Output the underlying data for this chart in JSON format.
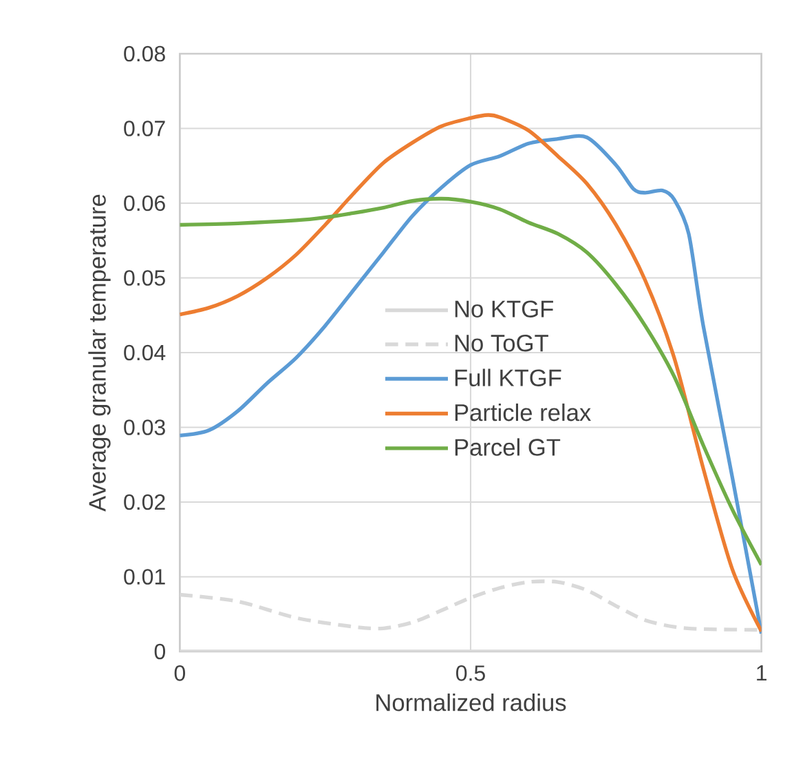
{
  "chart_data": {
    "type": "line",
    "xlabel": "Normalized radius",
    "ylabel": "Average granular temperature",
    "xlim": [
      0,
      1
    ],
    "ylim": [
      0,
      0.08
    ],
    "xticks": [
      0,
      0.5,
      1
    ],
    "yticks": [
      0,
      0.01,
      0.02,
      0.03,
      0.04,
      0.05,
      0.06,
      0.07,
      0.08
    ],
    "grid": true,
    "legend": "right",
    "marker": "none",
    "series": [
      {
        "name": "No KTGF",
        "color": "#d9d9d9",
        "line_style": "solid",
        "x": [
          0,
          1
        ],
        "values": [
          0,
          0
        ]
      },
      {
        "name": "No ToGT",
        "color": "#d9d9d9",
        "line_style": "dashed",
        "x": [
          0,
          0.1,
          0.2,
          0.3,
          0.35,
          0.4,
          0.45,
          0.5,
          0.55,
          0.6,
          0.65,
          0.7,
          0.75,
          0.8,
          0.85,
          0.9,
          1
        ],
        "values": [
          0.0076,
          0.0067,
          0.0045,
          0.0033,
          0.0031,
          0.0039,
          0.0055,
          0.0072,
          0.0085,
          0.0093,
          0.0093,
          0.0082,
          0.0061,
          0.0042,
          0.0033,
          0.003,
          0.0029
        ]
      },
      {
        "name": "Full KTGF",
        "color": "#5b9bd5",
        "line_style": "solid",
        "x": [
          0,
          0.05,
          0.1,
          0.15,
          0.2,
          0.25,
          0.3,
          0.35,
          0.4,
          0.45,
          0.5,
          0.55,
          0.6,
          0.65,
          0.7,
          0.75,
          0.78,
          0.8,
          0.83,
          0.85,
          0.875,
          0.9,
          0.95,
          1
        ],
        "values": [
          0.0289,
          0.0296,
          0.0322,
          0.0359,
          0.0393,
          0.0436,
          0.0485,
          0.0534,
          0.0583,
          0.0621,
          0.0651,
          0.0663,
          0.068,
          0.0686,
          0.0688,
          0.0651,
          0.0619,
          0.0614,
          0.0617,
          0.0605,
          0.0559,
          0.0436,
          0.0233,
          0.0024
        ]
      },
      {
        "name": "Particle relax",
        "color": "#ed7d31",
        "line_style": "solid",
        "x": [
          0,
          0.05,
          0.1,
          0.15,
          0.2,
          0.25,
          0.3,
          0.35,
          0.4,
          0.45,
          0.5,
          0.53,
          0.55,
          0.6,
          0.65,
          0.7,
          0.75,
          0.8,
          0.85,
          0.9,
          0.95,
          1
        ],
        "values": [
          0.0451,
          0.046,
          0.0476,
          0.05,
          0.0531,
          0.0571,
          0.0614,
          0.0654,
          0.0681,
          0.0703,
          0.0714,
          0.0718,
          0.0715,
          0.0697,
          0.0663,
          0.0626,
          0.0571,
          0.0497,
          0.0393,
          0.0245,
          0.011,
          0.0027
        ]
      },
      {
        "name": "Parcel GT",
        "color": "#70ad47",
        "line_style": "solid",
        "x": [
          0,
          0.1,
          0.2,
          0.25,
          0.3,
          0.35,
          0.4,
          0.45,
          0.5,
          0.55,
          0.6,
          0.65,
          0.7,
          0.75,
          0.8,
          0.85,
          0.9,
          0.95,
          1
        ],
        "values": [
          0.0571,
          0.0573,
          0.0577,
          0.0581,
          0.0587,
          0.0594,
          0.0603,
          0.0606,
          0.0602,
          0.0592,
          0.0574,
          0.0559,
          0.0534,
          0.0491,
          0.0436,
          0.0368,
          0.0276,
          0.019,
          0.0116
        ]
      }
    ]
  }
}
